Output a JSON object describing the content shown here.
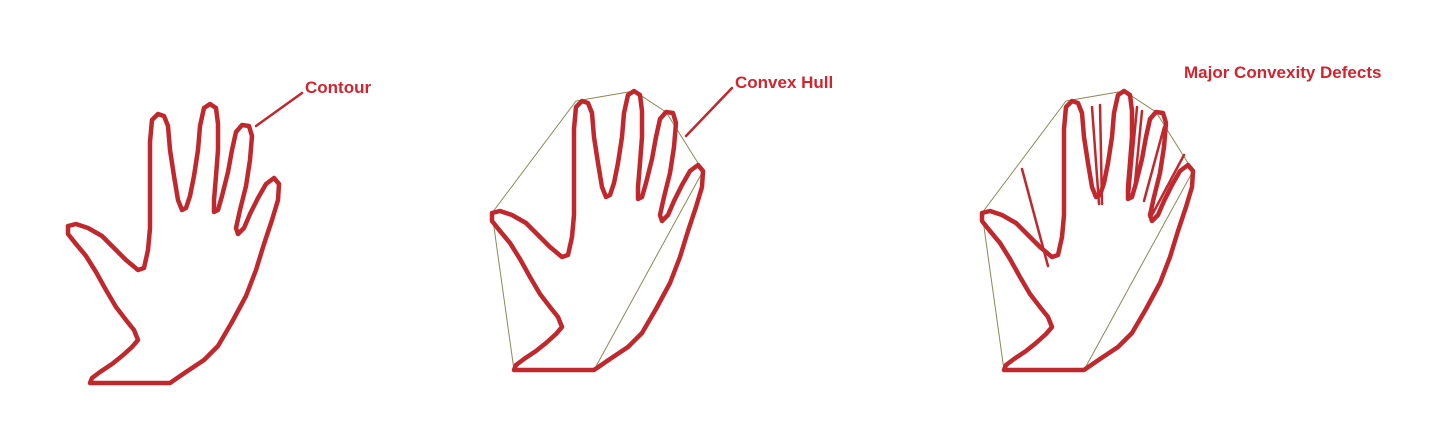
{
  "colors": {
    "contour": "#c0282d",
    "hull": "#8a8a58",
    "label": "#d1242f",
    "background": "#ffffff"
  },
  "panels": [
    {
      "id": "contour",
      "label": "Contour",
      "show_hull": false,
      "show_defects": false
    },
    {
      "id": "convex-hull",
      "label": "Convex Hull",
      "show_hull": true,
      "show_defects": false
    },
    {
      "id": "convexity-defects",
      "label": "Major Convexity Defects",
      "show_hull": true,
      "show_defects": true
    }
  ]
}
